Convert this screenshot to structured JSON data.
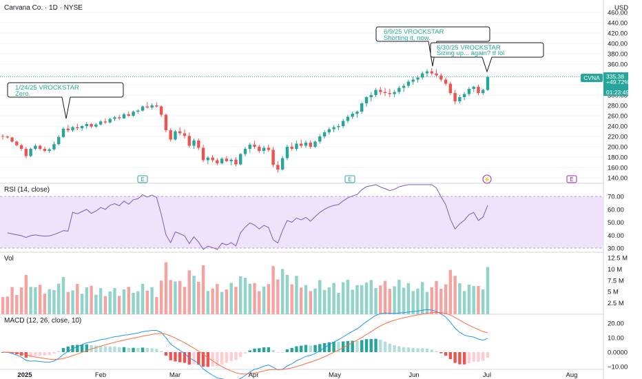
{
  "header": {
    "symbol_title": "Carvana Co. · 1D · NYSE",
    "currency": "USD"
  },
  "price_panel": {
    "ticker_tag": "CVNA",
    "last_price": "335.38",
    "change_pct": "+49.72%",
    "countdown": "01:23:49",
    "y_ticks": [
      "460.00",
      "440.00",
      "420.00",
      "400.00",
      "380.00",
      "360.00",
      "340.00",
      "320.00",
      "300.00",
      "280.00",
      "260.00",
      "240.00",
      "220.00",
      "200.00",
      "180.00",
      "160.00",
      "140.00"
    ]
  },
  "annotations": [
    {
      "line1": "1/24/25 VROCKSTAR",
      "line2": "Zero."
    },
    {
      "line1": "6/9/25 VROCKSTAR",
      "line2": "Shorting it, now."
    },
    {
      "line1": "6/30/25 VROCKSTAR",
      "line2": "Sizing up... again? tf lol"
    }
  ],
  "event_markers": [
    {
      "glyph": "E",
      "kind": "earnings"
    },
    {
      "glyph": "E",
      "kind": "earnings"
    },
    {
      "glyph": "⚡",
      "kind": "news"
    },
    {
      "glyph": "E",
      "kind": "earnings"
    }
  ],
  "rsi_panel": {
    "title": "RSI (14, close)",
    "y_ticks": [
      "70.00",
      "60.00",
      "50.00",
      "40.00",
      "30.00"
    ]
  },
  "volume_panel": {
    "title": "Vol",
    "y_ticks": [
      "12.5 M",
      "10 M",
      "7.5 M",
      "5 M",
      "2.5 M"
    ]
  },
  "macd_panel": {
    "title": "MACD (12, 26, close, 10)",
    "y_ticks": [
      "20.00",
      "10.00",
      "0.0000",
      "−10.00"
    ]
  },
  "x_axis": {
    "labels": [
      "2025",
      "Feb",
      "Mar",
      "Apr",
      "May",
      "Jun",
      "Jul",
      "Aug"
    ]
  },
  "colors": {
    "up": "#26a69a",
    "down": "#ef5350",
    "up_volume": "#8fd3c9",
    "down_volume": "#f5a3a1",
    "rsi_line": "#7e57c2",
    "rsi_band": "#efe3fb",
    "macd_line": "#2196f3",
    "signal_line": "#ff6d3f",
    "note_text": "#22ab94",
    "price_line": "#26a69a"
  },
  "chart_data": {
    "type": "candlestick",
    "title": "Carvana Co. · 1D · NYSE",
    "last_price": 335.38,
    "ohlc": [
      [
        221,
        224,
        214,
        220
      ],
      [
        220,
        222,
        216,
        218
      ],
      [
        218,
        219,
        208,
        210
      ],
      [
        210,
        212,
        201,
        203
      ],
      [
        203,
        206,
        192,
        196
      ],
      [
        196,
        200,
        178,
        182
      ],
      [
        182,
        198,
        180,
        196
      ],
      [
        196,
        206,
        193,
        202
      ],
      [
        202,
        204,
        193,
        196
      ],
      [
        196,
        200,
        190,
        192
      ],
      [
        192,
        198,
        188,
        195
      ],
      [
        195,
        210,
        193,
        205
      ],
      [
        205,
        222,
        203,
        219
      ],
      [
        219,
        238,
        217,
        235
      ],
      [
        235,
        242,
        228,
        232
      ],
      [
        232,
        240,
        229,
        238
      ],
      [
        238,
        245,
        232,
        236
      ],
      [
        236,
        242,
        231,
        240
      ],
      [
        240,
        248,
        235,
        244
      ],
      [
        244,
        246,
        236,
        239
      ],
      [
        239,
        246,
        237,
        243
      ],
      [
        243,
        252,
        241,
        249
      ],
      [
        249,
        255,
        244,
        247
      ],
      [
        247,
        256,
        245,
        254
      ],
      [
        254,
        260,
        250,
        257
      ],
      [
        257,
        262,
        252,
        255
      ],
      [
        255,
        266,
        254,
        263
      ],
      [
        263,
        268,
        258,
        260
      ],
      [
        260,
        270,
        258,
        268
      ],
      [
        268,
        273,
        264,
        270
      ],
      [
        270,
        280,
        268,
        278
      ],
      [
        278,
        287,
        274,
        276
      ],
      [
        276,
        284,
        272,
        280
      ],
      [
        280,
        286,
        276,
        278
      ],
      [
        278,
        280,
        258,
        262
      ],
      [
        262,
        264,
        228,
        232
      ],
      [
        232,
        236,
        210,
        214
      ],
      [
        214,
        232,
        212,
        230
      ],
      [
        230,
        238,
        222,
        226
      ],
      [
        226,
        234,
        216,
        221
      ],
      [
        221,
        228,
        198,
        202
      ],
      [
        202,
        216,
        196,
        212
      ],
      [
        212,
        216,
        194,
        198
      ],
      [
        198,
        204,
        170,
        174
      ],
      [
        174,
        182,
        166,
        179
      ],
      [
        179,
        184,
        170,
        174
      ],
      [
        174,
        178,
        164,
        168
      ],
      [
        168,
        180,
        166,
        177
      ],
      [
        177,
        182,
        170,
        172
      ],
      [
        172,
        178,
        164,
        175
      ],
      [
        175,
        180,
        162,
        166
      ],
      [
        166,
        188,
        164,
        186
      ],
      [
        186,
        200,
        182,
        196
      ],
      [
        196,
        208,
        188,
        204
      ],
      [
        204,
        212,
        196,
        200
      ],
      [
        200,
        204,
        188,
        192
      ],
      [
        192,
        202,
        186,
        198
      ],
      [
        198,
        204,
        190,
        194
      ],
      [
        194,
        200,
        160,
        165
      ],
      [
        165,
        172,
        150,
        156
      ],
      [
        156,
        182,
        154,
        178
      ],
      [
        178,
        204,
        174,
        200
      ],
      [
        200,
        208,
        192,
        196
      ],
      [
        196,
        212,
        192,
        206
      ],
      [
        206,
        214,
        198,
        202
      ],
      [
        202,
        212,
        198,
        208
      ],
      [
        208,
        212,
        196,
        200
      ],
      [
        200,
        212,
        198,
        210
      ],
      [
        210,
        224,
        206,
        220
      ],
      [
        220,
        232,
        216,
        228
      ],
      [
        228,
        238,
        224,
        234
      ],
      [
        234,
        242,
        228,
        238
      ],
      [
        238,
        244,
        232,
        240
      ],
      [
        240,
        254,
        236,
        250
      ],
      [
        250,
        262,
        246,
        258
      ],
      [
        258,
        268,
        254,
        264
      ],
      [
        264,
        270,
        256,
        268
      ],
      [
        268,
        286,
        264,
        284
      ],
      [
        284,
        298,
        278,
        296
      ],
      [
        296,
        306,
        288,
        300
      ],
      [
        300,
        314,
        296,
        310
      ],
      [
        310,
        316,
        300,
        306
      ],
      [
        306,
        314,
        298,
        304
      ],
      [
        304,
        312,
        296,
        302
      ],
      [
        302,
        310,
        296,
        306
      ],
      [
        306,
        318,
        302,
        314
      ],
      [
        314,
        322,
        306,
        318
      ],
      [
        318,
        330,
        314,
        326
      ],
      [
        326,
        336,
        320,
        330
      ],
      [
        330,
        338,
        324,
        334
      ],
      [
        334,
        346,
        330,
        342
      ],
      [
        342,
        350,
        336,
        346
      ],
      [
        346,
        352,
        338,
        342
      ],
      [
        342,
        350,
        334,
        338
      ],
      [
        338,
        342,
        326,
        330
      ],
      [
        330,
        334,
        318,
        322
      ],
      [
        322,
        326,
        300,
        304
      ],
      [
        304,
        310,
        282,
        288
      ],
      [
        288,
        300,
        284,
        296
      ],
      [
        296,
        306,
        290,
        302
      ],
      [
        302,
        316,
        298,
        312
      ],
      [
        312,
        318,
        306,
        316
      ],
      [
        316,
        320,
        300,
        304
      ],
      [
        304,
        312,
        300,
        310
      ],
      [
        310,
        338,
        308,
        335
      ]
    ]
  }
}
